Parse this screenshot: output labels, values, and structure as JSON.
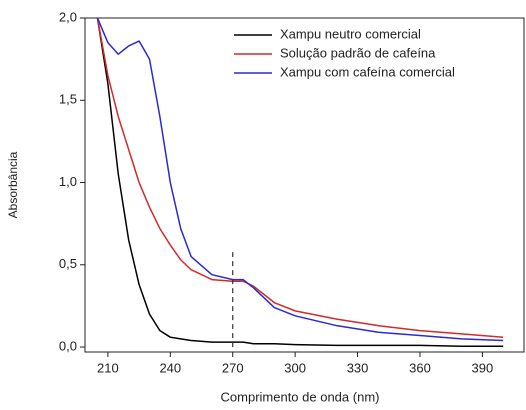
{
  "chart_data": {
    "type": "line",
    "xlabel": "Comprimento de onda (nm)",
    "ylabel": "Absorbância",
    "x": [
      205,
      210,
      215,
      220,
      225,
      230,
      235,
      240,
      245,
      250,
      260,
      270,
      275,
      280,
      290,
      300,
      320,
      340,
      360,
      380,
      400
    ],
    "series": [
      {
        "name": "Xampu neutro comercial",
        "color": "#000000",
        "values": [
          2.0,
          1.6,
          1.05,
          0.65,
          0.38,
          0.2,
          0.1,
          0.06,
          0.05,
          0.04,
          0.03,
          0.03,
          0.03,
          0.02,
          0.02,
          0.015,
          0.01,
          0.01,
          0.01,
          0.005,
          0.005
        ]
      },
      {
        "name": "Solução padrão de cafeína",
        "color": "#d42a2a",
        "values": [
          2.0,
          1.65,
          1.4,
          1.2,
          1.0,
          0.85,
          0.72,
          0.62,
          0.53,
          0.47,
          0.41,
          0.4,
          0.4,
          0.37,
          0.27,
          0.22,
          0.17,
          0.13,
          0.1,
          0.08,
          0.06
        ]
      },
      {
        "name": "Xampu com cafeína comercial",
        "color": "#2a2ad4",
        "values": [
          2.0,
          1.85,
          1.78,
          1.83,
          1.86,
          1.75,
          1.4,
          1.0,
          0.72,
          0.55,
          0.44,
          0.41,
          0.41,
          0.36,
          0.24,
          0.19,
          0.13,
          0.09,
          0.07,
          0.05,
          0.04
        ]
      }
    ],
    "vline": {
      "x": 270,
      "ymax": 0.6
    },
    "xlim": [
      199,
      410
    ],
    "xticks": [
      210,
      240,
      270,
      300,
      330,
      360,
      390
    ],
    "ylim": [
      -0.03,
      2.0
    ],
    "yticks": [
      {
        "value": 0,
        "label": "0,0"
      },
      {
        "value": 0.5,
        "label": "0,5"
      },
      {
        "value": 1.0,
        "label": "1,0"
      },
      {
        "value": 1.5,
        "label": "1,5"
      },
      {
        "value": 2.0,
        "label": "2,0"
      }
    ],
    "legend": "upper right"
  }
}
